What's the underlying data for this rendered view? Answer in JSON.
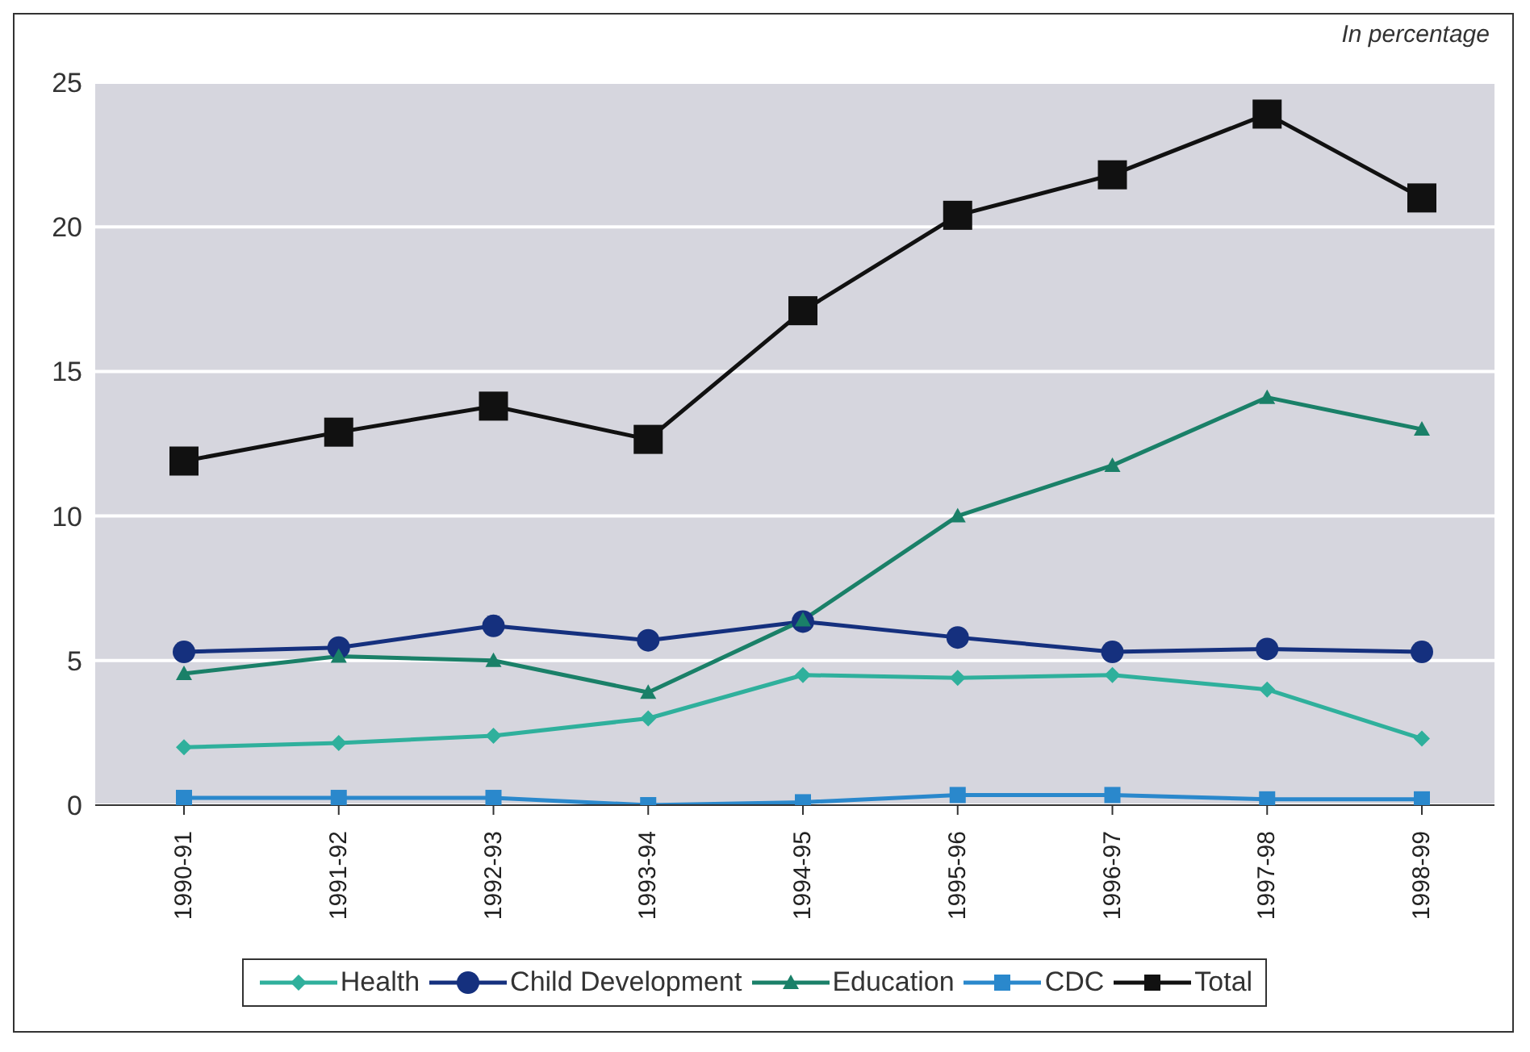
{
  "chart_data": {
    "type": "line",
    "annotations": [
      "In percentage"
    ],
    "categories": [
      "1990-91",
      "1991-92",
      "1992-93",
      "1993-94",
      "1994-95",
      "1995-96",
      "1996-97",
      "1997-98",
      "1998-99"
    ],
    "series": [
      {
        "name": "Health",
        "color": "#2fb09c",
        "marker": "diamond",
        "values": [
          2.0,
          2.15,
          2.4,
          3.0,
          4.5,
          4.4,
          4.5,
          4.0,
          2.3
        ]
      },
      {
        "name": "Child Development",
        "color": "#15307e",
        "marker": "circle",
        "values": [
          5.3,
          5.45,
          6.2,
          5.7,
          6.35,
          5.8,
          5.3,
          5.4,
          5.3
        ]
      },
      {
        "name": "Education",
        "color": "#1a8068",
        "marker": "triangle",
        "values": [
          4.55,
          5.15,
          5.0,
          3.9,
          6.4,
          10.0,
          11.75,
          14.1,
          13.0
        ]
      },
      {
        "name": "CDC",
        "color": "#2a88cc",
        "marker": "square",
        "values": [
          0.25,
          0.25,
          0.25,
          0.0,
          0.1,
          0.35,
          0.35,
          0.2,
          0.2
        ]
      },
      {
        "name": "Total",
        "color": "#111111",
        "marker": "square",
        "values": [
          11.9,
          12.9,
          13.8,
          12.65,
          17.1,
          20.4,
          21.8,
          23.9,
          21.0
        ]
      }
    ],
    "ylim": [
      0,
      25
    ],
    "yticks": [
      0,
      5,
      10,
      15,
      20,
      25
    ],
    "grid": "y",
    "legend": "bottom"
  }
}
